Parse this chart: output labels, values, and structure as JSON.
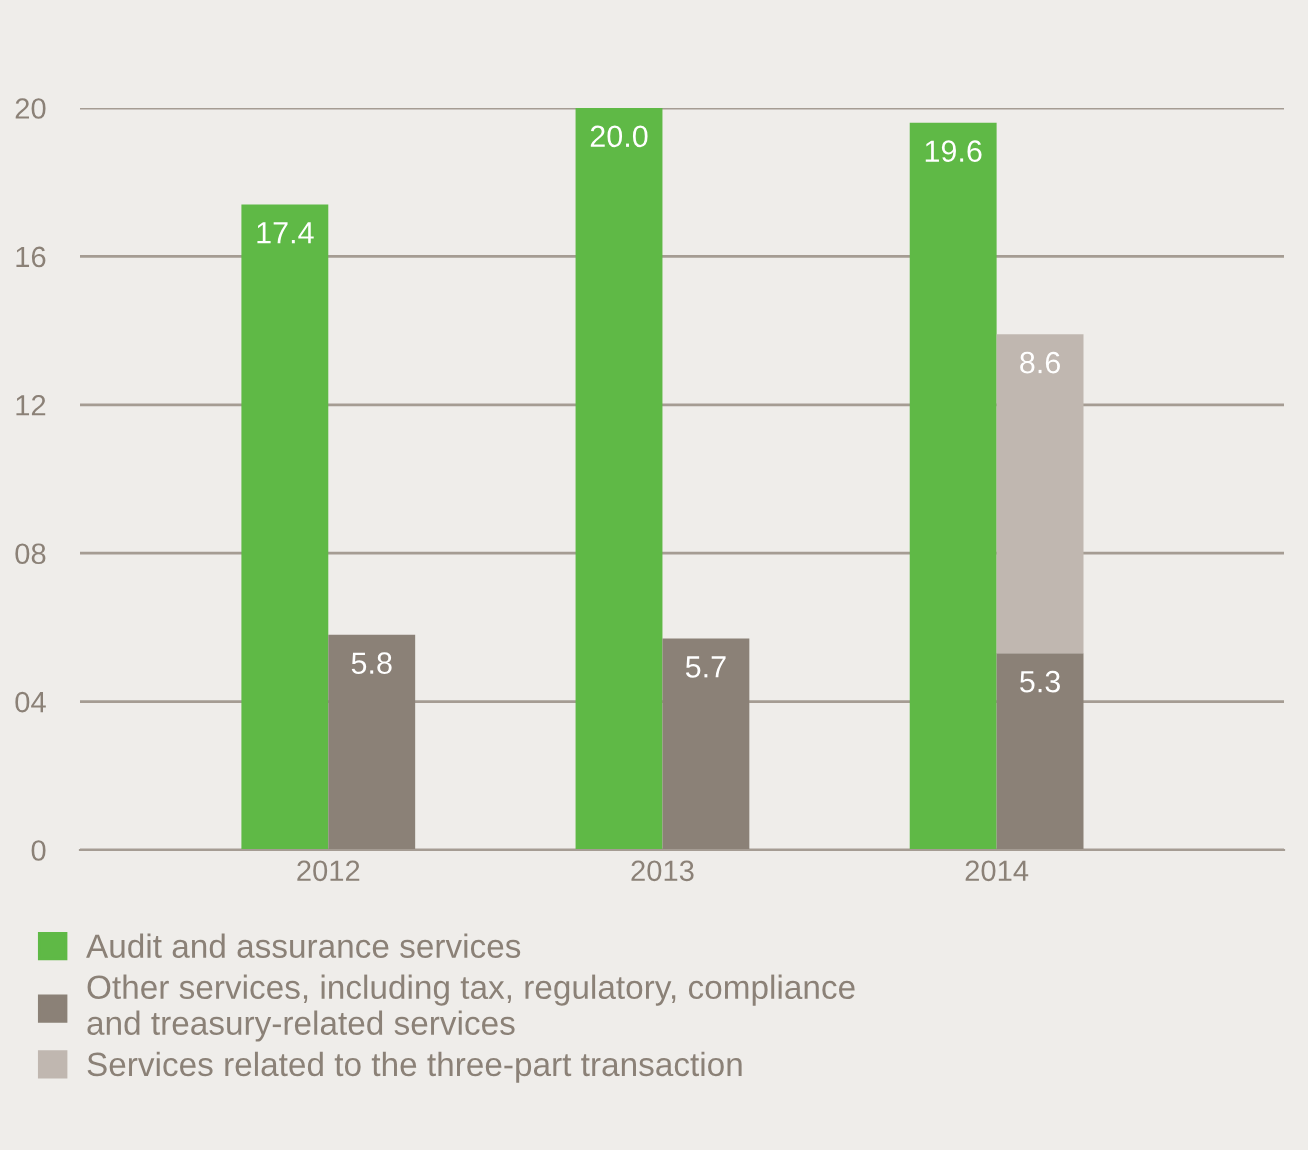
{
  "chart_data": {
    "type": "bar",
    "categories": [
      "2012",
      "2013",
      "2014"
    ],
    "series": [
      {
        "name": "Audit and assurance services",
        "color": "#5fb946",
        "values": [
          17.4,
          20.0,
          19.6
        ],
        "value_labels": [
          "17.4",
          "20.0",
          "19.6"
        ]
      },
      {
        "name": "Other services, including tax, regulatory, compliance\nand treasury-related services",
        "color": "#8b8177",
        "values": [
          5.8,
          5.7,
          5.3
        ],
        "value_labels": [
          "5.8",
          "5.7",
          "5.3"
        ]
      },
      {
        "name": "Services related to the three-part transaction",
        "color": "#c0b7b0",
        "base": [
          null,
          null,
          5.3
        ],
        "values": [
          null,
          null,
          8.6
        ],
        "value_labels": [
          null,
          null,
          "8.6"
        ]
      }
    ],
    "ylim": [
      0,
      20
    ],
    "yticks": [
      0,
      {
        "value": 4,
        "label": "04"
      },
      {
        "value": 8,
        "label": "08"
      },
      12,
      16,
      20
    ],
    "grid": "y",
    "legend": "bottom"
  }
}
